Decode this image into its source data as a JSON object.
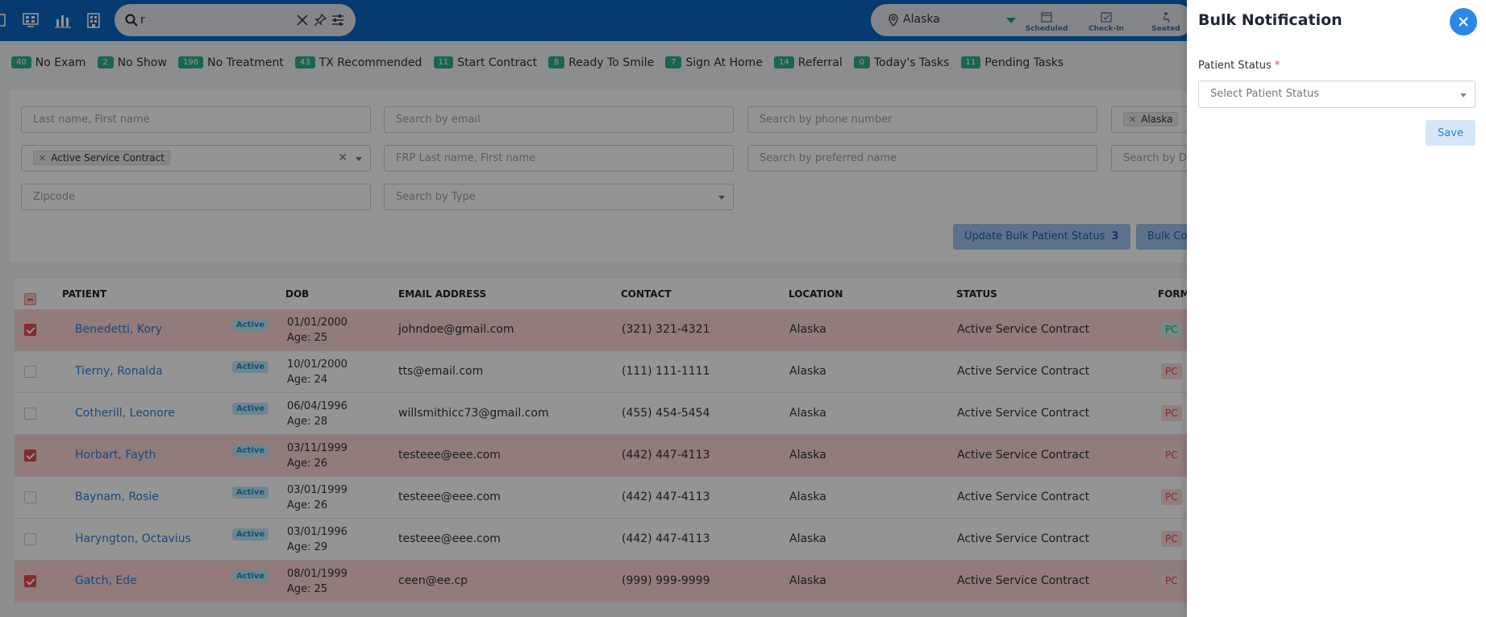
{
  "topbar": {
    "icons": [
      "calendar-icon",
      "monitor-grid-icon",
      "bar-chart-icon",
      "building-icon"
    ],
    "search": {
      "value": "r",
      "icons": [
        "search-icon",
        "clear-icon",
        "pin-icon",
        "sliders-icon"
      ]
    },
    "location": "Alaska",
    "quick_actions": [
      {
        "label": "Scheduled",
        "icon": "calendar-small-icon"
      },
      {
        "label": "Check-In",
        "icon": "checkin-icon"
      },
      {
        "label": "Seated",
        "icon": "seated-icon"
      }
    ]
  },
  "status_chips": [
    {
      "count": "40",
      "label": "No Exam"
    },
    {
      "count": "2",
      "label": "No Show"
    },
    {
      "count": "196",
      "label": "No Treatment"
    },
    {
      "count": "43",
      "label": "TX Recommended"
    },
    {
      "count": "11",
      "label": "Start Contract"
    },
    {
      "count": "8",
      "label": "Ready To Smile"
    },
    {
      "count": "7",
      "label": "Sign At Home"
    },
    {
      "count": "14",
      "label": "Referral"
    },
    {
      "count": "0",
      "label": "Today's Tasks"
    },
    {
      "count": "11",
      "label": "Pending Tasks"
    }
  ],
  "filters": {
    "name_placeholder": "Last name, First name",
    "email_placeholder": "Search by email",
    "phone_placeholder": "Search by phone number",
    "location_tag": "Alaska",
    "status_tag": "Active Service Contract",
    "frp_placeholder": "FRP Last name, First name",
    "preferred_placeholder": "Search by preferred name",
    "dob_placeholder": "Search by D",
    "zip_placeholder": "Zipcode",
    "type_placeholder": "Search by Type"
  },
  "bulk_actions": {
    "update_status_label": "Update Bulk Patient Status",
    "update_status_count": "3",
    "second_label": "Bulk Co"
  },
  "table": {
    "columns": [
      "PATIENT",
      "DOB",
      "EMAIL ADDRESS",
      "CONTACT",
      "LOCATION",
      "STATUS",
      "FORM"
    ],
    "rows": [
      {
        "selected": true,
        "name": "Benedetti, Kory",
        "badge": "Active",
        "dob": "01/01/2000",
        "age": "Age: 25",
        "email": "johndoe@gmail.com",
        "contact": "(321) 321-4321",
        "location": "Alaska",
        "status": "Active Service Contract",
        "form": "PC",
        "form_ok": true
      },
      {
        "selected": false,
        "name": "Tierny, Ronalda",
        "badge": "Active",
        "dob": "10/01/2000",
        "age": "Age: 24",
        "email": "tts@email.com",
        "contact": "(111) 111-1111",
        "location": "Alaska",
        "status": "Active Service Contract",
        "form": "PC",
        "form_ok": false
      },
      {
        "selected": false,
        "name": "Cotherill, Leonore",
        "badge": "Active",
        "dob": "06/04/1996",
        "age": "Age: 28",
        "email": "willsmithicc73@gmail.com",
        "contact": "(455) 454-5454",
        "location": "Alaska",
        "status": "Active Service Contract",
        "form": "PC",
        "form_ok": false
      },
      {
        "selected": true,
        "name": "Horbart, Fayth",
        "badge": "Active",
        "dob": "03/11/1999",
        "age": "Age: 26",
        "email": "testeee@eee.com",
        "contact": "(442) 447-4113",
        "location": "Alaska",
        "status": "Active Service Contract",
        "form": "PC",
        "form_ok": false
      },
      {
        "selected": false,
        "name": "Baynam, Rosie",
        "badge": "Active",
        "dob": "03/01/1999",
        "age": "Age: 26",
        "email": "testeee@eee.com",
        "contact": "(442) 447-4113",
        "location": "Alaska",
        "status": "Active Service Contract",
        "form": "PC",
        "form_ok": false
      },
      {
        "selected": false,
        "name": "Haryngton, Octavius",
        "badge": "Active",
        "dob": "03/01/1996",
        "age": "Age: 29",
        "email": "testeee@eee.com",
        "contact": "(442) 447-4113",
        "location": "Alaska",
        "status": "Active Service Contract",
        "form": "PC",
        "form_ok": false
      },
      {
        "selected": true,
        "name": "Gatch, Ede",
        "badge": "Active",
        "dob": "08/01/1999",
        "age": "Age: 25",
        "email": "ceen@ee.cp",
        "contact": "(999) 999-9999",
        "location": "Alaska",
        "status": "Active Service Contract",
        "form": "PC",
        "form_ok": false
      }
    ]
  },
  "drawer": {
    "title": "Bulk Notification",
    "field_label": "Patient Status",
    "required_mark": "*",
    "select_placeholder": "Select Patient Status",
    "save_label": "Save",
    "close_icon": "close-icon"
  },
  "colors": {
    "topbar": "#0b66c3",
    "chip": "#2fae8a",
    "selected_row": "#fbd4d4",
    "link": "#2f7fd6",
    "close_button": "#2b87e8"
  }
}
